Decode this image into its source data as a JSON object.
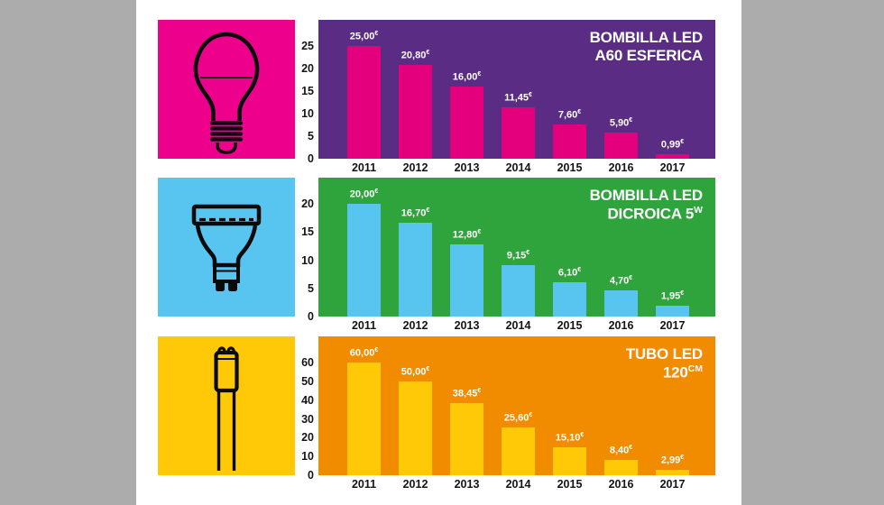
{
  "page": {
    "background": "#ffffff",
    "side_panel_color": "#acacac",
    "text_color": "#141414",
    "label_color": "#ffffff"
  },
  "currency": "€",
  "chart_data": [
    {
      "type": "bar",
      "title_lines": [
        {
          "text": "BOMBILLA LED"
        },
        {
          "text": "A60 ESFERICA"
        }
      ],
      "icon": "a60-bulb-icon",
      "colors": {
        "panel": "#5b2c84",
        "bar": "#e4007c",
        "icon_bg": "#ec008c"
      },
      "categories": [
        "2011",
        "2012",
        "2013",
        "2014",
        "2015",
        "2016",
        "2017"
      ],
      "values": [
        25.0,
        20.8,
        16.0,
        11.45,
        7.6,
        5.9,
        0.99
      ],
      "value_labels": [
        "25,00",
        "20,80",
        "16,00",
        "11,45",
        "7,60",
        "5,90",
        "0,99"
      ],
      "xlabel": "",
      "ylabel": "",
      "ylim": [
        0,
        25
      ],
      "yticks": [
        25,
        20,
        15,
        10,
        5,
        0
      ],
      "grid": false,
      "legend": "none"
    },
    {
      "type": "bar",
      "title_lines": [
        {
          "text": "BOMBILLA LED"
        },
        {
          "text": "DICROICA 5",
          "sup": "W"
        }
      ],
      "icon": "gu10-dichroic-icon",
      "colors": {
        "panel": "#2fa43c",
        "bar": "#58c4f0",
        "icon_bg": "#58c4f0"
      },
      "categories": [
        "2011",
        "2012",
        "2013",
        "2014",
        "2015",
        "2016",
        "2017"
      ],
      "values": [
        20.0,
        16.7,
        12.8,
        9.15,
        6.1,
        4.7,
        1.95
      ],
      "value_labels": [
        "20,00",
        "16,70",
        "12,80",
        "9,15",
        "6,10",
        "4,70",
        "1,95"
      ],
      "xlabel": "",
      "ylabel": "",
      "ylim": [
        0,
        20
      ],
      "yticks": [
        20,
        15,
        10,
        5,
        0
      ],
      "grid": false,
      "legend": "none"
    },
    {
      "type": "bar",
      "title_lines": [
        {
          "text": "TUBO LED"
        },
        {
          "text": "120",
          "sup": "CM"
        }
      ],
      "icon": "led-tube-icon",
      "colors": {
        "panel": "#f18b00",
        "bar": "#ffc908",
        "icon_bg": "#ffc908"
      },
      "categories": [
        "2011",
        "2012",
        "2013",
        "2014",
        "2015",
        "2016",
        "2017"
      ],
      "values": [
        60.0,
        50.0,
        38.45,
        25.6,
        15.1,
        8.4,
        2.99
      ],
      "value_labels": [
        "60,00",
        "50,00",
        "38,45",
        "25,60",
        "15,10",
        "8,40",
        "2,99"
      ],
      "xlabel": "",
      "ylabel": "",
      "ylim": [
        0,
        60
      ],
      "yticks": [
        60,
        50,
        40,
        30,
        20,
        10,
        0
      ],
      "grid": false,
      "legend": "none"
    }
  ]
}
